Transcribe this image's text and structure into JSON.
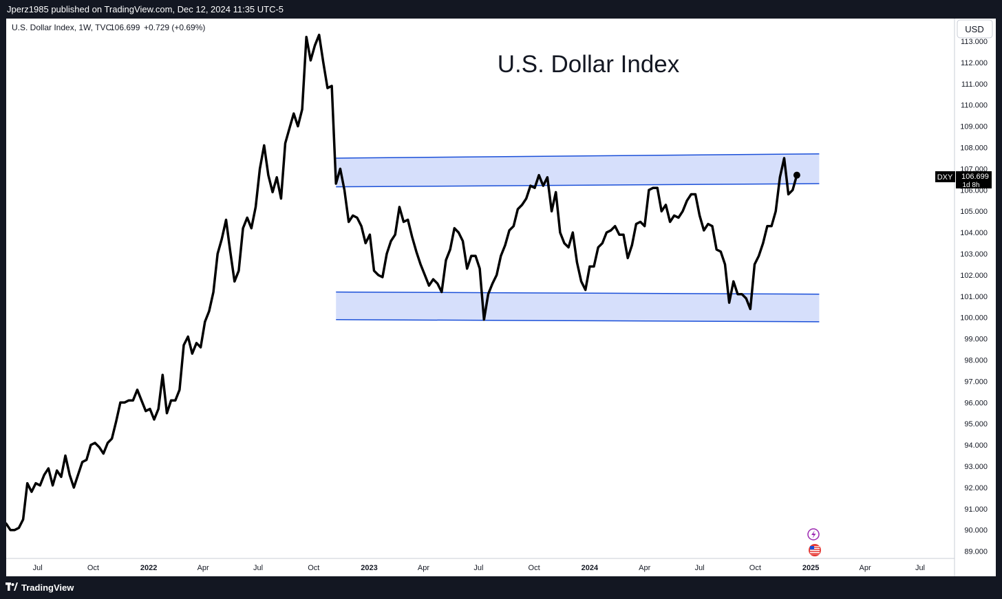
{
  "header": {
    "publish_text": "Jperz1985 published on TradingView.com, Dec 12, 2024 11:35 UTC-5"
  },
  "legend": {
    "symbol_text": "U.S. Dollar Index, 1W, TVC",
    "price": "106.699",
    "change": "+0.729 (+0.69%)"
  },
  "scale": {
    "currency": "USD"
  },
  "price_tag": {
    "ticker": "DXY",
    "price": "106.699",
    "countdown": "1d 8h"
  },
  "footer": {
    "brand": "TradingView"
  },
  "colors": {
    "line": "#000000",
    "zone_fill": "#d1dcfb",
    "zone_border": "#1a4fd8",
    "background": "#ffffff",
    "frame": "#131722",
    "event_purple": "#9c27b0",
    "event_red": "#e53935"
  },
  "icons": {
    "event_1": "lightning-icon",
    "event_2": "us-flag-icon",
    "brand": "tradingview-logo-icon"
  },
  "chart_data": {
    "type": "line",
    "title": "U.S. Dollar Index",
    "ylim": [
      89,
      113.5
    ],
    "y_ticks": [
      "89.000",
      "90.000",
      "91.000",
      "92.000",
      "93.000",
      "94.000",
      "95.000",
      "96.000",
      "97.000",
      "98.000",
      "99.000",
      "100.000",
      "101.000",
      "102.000",
      "103.000",
      "104.000",
      "105.000",
      "106.000",
      "107.000",
      "108.000",
      "109.000",
      "110.000",
      "111.000",
      "112.000",
      "113.000"
    ],
    "x_ticks": [
      "Jul",
      "Oct",
      "2022",
      "Apr",
      "Jul",
      "Oct",
      "2023",
      "Apr",
      "Jul",
      "Oct",
      "2024",
      "Apr",
      "Jul",
      "Oct",
      "2025",
      "Apr",
      "Jul"
    ],
    "x_tick_dates": [
      "2021-07-01",
      "2021-10-01",
      "2022-01-01",
      "2022-04-01",
      "2022-07-01",
      "2022-10-01",
      "2023-01-01",
      "2023-04-01",
      "2023-07-01",
      "2023-10-01",
      "2024-01-01",
      "2024-04-01",
      "2024-07-01",
      "2024-10-01",
      "2025-01-01",
      "2025-04-01",
      "2025-07-01"
    ],
    "x_range": [
      "2021-05-10",
      "2025-08-27"
    ],
    "grid": false,
    "series": [
      {
        "values": [
          [
            "2021-05-10",
            90.3
          ],
          [
            "2021-05-17",
            90.0
          ],
          [
            "2021-05-24",
            90.0
          ],
          [
            "2021-05-31",
            90.1
          ],
          [
            "2021-06-07",
            90.5
          ],
          [
            "2021-06-14",
            92.2
          ],
          [
            "2021-06-21",
            91.8
          ],
          [
            "2021-06-28",
            92.2
          ],
          [
            "2021-07-05",
            92.1
          ],
          [
            "2021-07-12",
            92.6
          ],
          [
            "2021-07-19",
            92.9
          ],
          [
            "2021-07-26",
            92.1
          ],
          [
            "2021-08-02",
            92.8
          ],
          [
            "2021-08-09",
            92.5
          ],
          [
            "2021-08-16",
            93.5
          ],
          [
            "2021-08-23",
            92.6
          ],
          [
            "2021-08-30",
            92.0
          ],
          [
            "2021-09-06",
            92.6
          ],
          [
            "2021-09-13",
            93.2
          ],
          [
            "2021-09-20",
            93.3
          ],
          [
            "2021-09-27",
            94.0
          ],
          [
            "2021-10-04",
            94.1
          ],
          [
            "2021-10-11",
            93.9
          ],
          [
            "2021-10-18",
            93.6
          ],
          [
            "2021-10-25",
            94.1
          ],
          [
            "2021-11-01",
            94.3
          ],
          [
            "2021-11-08",
            95.1
          ],
          [
            "2021-11-15",
            96.0
          ],
          [
            "2021-11-22",
            96.0
          ],
          [
            "2021-11-29",
            96.1
          ],
          [
            "2021-12-06",
            96.1
          ],
          [
            "2021-12-13",
            96.6
          ],
          [
            "2021-12-20",
            96.1
          ],
          [
            "2021-12-27",
            95.6
          ],
          [
            "2022-01-03",
            95.7
          ],
          [
            "2022-01-10",
            95.2
          ],
          [
            "2022-01-17",
            95.7
          ],
          [
            "2022-01-24",
            97.3
          ],
          [
            "2022-01-31",
            95.5
          ],
          [
            "2022-02-07",
            96.1
          ],
          [
            "2022-02-14",
            96.1
          ],
          [
            "2022-02-21",
            96.6
          ],
          [
            "2022-02-28",
            98.7
          ],
          [
            "2022-03-07",
            99.1
          ],
          [
            "2022-03-14",
            98.3
          ],
          [
            "2022-03-21",
            98.8
          ],
          [
            "2022-03-28",
            98.6
          ],
          [
            "2022-04-04",
            99.8
          ],
          [
            "2022-04-11",
            100.3
          ],
          [
            "2022-04-18",
            101.2
          ],
          [
            "2022-04-25",
            103.0
          ],
          [
            "2022-05-02",
            103.7
          ],
          [
            "2022-05-09",
            104.6
          ],
          [
            "2022-05-16",
            103.1
          ],
          [
            "2022-05-23",
            101.7
          ],
          [
            "2022-05-30",
            102.2
          ],
          [
            "2022-06-06",
            104.2
          ],
          [
            "2022-06-13",
            104.7
          ],
          [
            "2022-06-20",
            104.2
          ],
          [
            "2022-06-27",
            105.2
          ],
          [
            "2022-07-04",
            107.0
          ],
          [
            "2022-07-11",
            108.1
          ],
          [
            "2022-07-18",
            106.7
          ],
          [
            "2022-07-25",
            105.9
          ],
          [
            "2022-08-01",
            106.6
          ],
          [
            "2022-08-08",
            105.6
          ],
          [
            "2022-08-15",
            108.2
          ],
          [
            "2022-08-22",
            108.9
          ],
          [
            "2022-08-29",
            109.6
          ],
          [
            "2022-09-05",
            109.0
          ],
          [
            "2022-09-12",
            109.8
          ],
          [
            "2022-09-19",
            113.2
          ],
          [
            "2022-09-26",
            112.1
          ],
          [
            "2022-10-03",
            112.8
          ],
          [
            "2022-10-10",
            113.3
          ],
          [
            "2022-10-17",
            112.0
          ],
          [
            "2022-10-24",
            110.8
          ],
          [
            "2022-10-31",
            110.9
          ],
          [
            "2022-11-07",
            106.3
          ],
          [
            "2022-11-14",
            107.0
          ],
          [
            "2022-11-21",
            106.0
          ],
          [
            "2022-11-28",
            104.5
          ],
          [
            "2022-12-05",
            104.8
          ],
          [
            "2022-12-12",
            104.7
          ],
          [
            "2022-12-19",
            104.3
          ],
          [
            "2022-12-26",
            103.5
          ],
          [
            "2023-01-02",
            103.9
          ],
          [
            "2023-01-09",
            102.2
          ],
          [
            "2023-01-16",
            102.0
          ],
          [
            "2023-01-23",
            101.9
          ],
          [
            "2023-01-30",
            103.0
          ],
          [
            "2023-02-06",
            103.6
          ],
          [
            "2023-02-13",
            103.9
          ],
          [
            "2023-02-20",
            105.2
          ],
          [
            "2023-02-27",
            104.5
          ],
          [
            "2023-03-06",
            104.6
          ],
          [
            "2023-03-13",
            103.8
          ],
          [
            "2023-03-20",
            103.1
          ],
          [
            "2023-03-27",
            102.5
          ],
          [
            "2023-04-03",
            102.0
          ],
          [
            "2023-04-10",
            101.5
          ],
          [
            "2023-04-17",
            101.8
          ],
          [
            "2023-04-24",
            101.6
          ],
          [
            "2023-05-01",
            101.2
          ],
          [
            "2023-05-08",
            102.7
          ],
          [
            "2023-05-15",
            103.2
          ],
          [
            "2023-05-22",
            104.2
          ],
          [
            "2023-05-29",
            104.0
          ],
          [
            "2023-06-05",
            103.6
          ],
          [
            "2023-06-12",
            102.3
          ],
          [
            "2023-06-19",
            102.9
          ],
          [
            "2023-06-26",
            102.9
          ],
          [
            "2023-07-03",
            102.3
          ],
          [
            "2023-07-10",
            99.9
          ],
          [
            "2023-07-17",
            101.1
          ],
          [
            "2023-07-24",
            101.6
          ],
          [
            "2023-07-31",
            102.0
          ],
          [
            "2023-08-07",
            102.9
          ],
          [
            "2023-08-14",
            103.4
          ],
          [
            "2023-08-21",
            104.1
          ],
          [
            "2023-08-28",
            104.3
          ],
          [
            "2023-09-04",
            105.1
          ],
          [
            "2023-09-11",
            105.3
          ],
          [
            "2023-09-18",
            105.6
          ],
          [
            "2023-09-25",
            106.2
          ],
          [
            "2023-10-02",
            106.1
          ],
          [
            "2023-10-09",
            106.7
          ],
          [
            "2023-10-16",
            106.2
          ],
          [
            "2023-10-23",
            106.6
          ],
          [
            "2023-10-30",
            105.0
          ],
          [
            "2023-11-06",
            105.9
          ],
          [
            "2023-11-13",
            104.0
          ],
          [
            "2023-11-20",
            103.5
          ],
          [
            "2023-11-27",
            103.3
          ],
          [
            "2023-12-04",
            104.0
          ],
          [
            "2023-12-11",
            102.6
          ],
          [
            "2023-12-18",
            101.7
          ],
          [
            "2023-12-25",
            101.3
          ],
          [
            "2024-01-01",
            102.4
          ],
          [
            "2024-01-08",
            102.4
          ],
          [
            "2024-01-15",
            103.3
          ],
          [
            "2024-01-22",
            103.5
          ],
          [
            "2024-01-29",
            104.0
          ],
          [
            "2024-02-05",
            104.1
          ],
          [
            "2024-02-12",
            104.3
          ],
          [
            "2024-02-19",
            103.9
          ],
          [
            "2024-02-26",
            103.9
          ],
          [
            "2024-03-04",
            102.8
          ],
          [
            "2024-03-11",
            103.4
          ],
          [
            "2024-03-18",
            104.4
          ],
          [
            "2024-03-25",
            104.5
          ],
          [
            "2024-04-01",
            104.3
          ],
          [
            "2024-04-08",
            106.0
          ],
          [
            "2024-04-15",
            106.1
          ],
          [
            "2024-04-22",
            106.1
          ],
          [
            "2024-04-29",
            105.0
          ],
          [
            "2024-05-06",
            105.3
          ],
          [
            "2024-05-13",
            104.5
          ],
          [
            "2024-05-20",
            104.8
          ],
          [
            "2024-05-27",
            104.7
          ],
          [
            "2024-06-03",
            105.0
          ],
          [
            "2024-06-10",
            105.5
          ],
          [
            "2024-06-17",
            105.8
          ],
          [
            "2024-06-24",
            105.8
          ],
          [
            "2024-07-01",
            104.8
          ],
          [
            "2024-07-08",
            104.1
          ],
          [
            "2024-07-15",
            104.4
          ],
          [
            "2024-07-22",
            104.3
          ],
          [
            "2024-07-29",
            103.2
          ],
          [
            "2024-08-05",
            103.1
          ],
          [
            "2024-08-12",
            102.5
          ],
          [
            "2024-08-19",
            100.7
          ],
          [
            "2024-08-26",
            101.7
          ],
          [
            "2024-09-02",
            101.1
          ],
          [
            "2024-09-09",
            101.1
          ],
          [
            "2024-09-16",
            100.9
          ],
          [
            "2024-09-23",
            100.4
          ],
          [
            "2024-09-30",
            102.5
          ],
          [
            "2024-10-07",
            102.9
          ],
          [
            "2024-10-14",
            103.5
          ],
          [
            "2024-10-21",
            104.3
          ],
          [
            "2024-10-28",
            104.3
          ],
          [
            "2024-11-04",
            105.0
          ],
          [
            "2024-11-11",
            106.6
          ],
          [
            "2024-11-18",
            107.5
          ],
          [
            "2024-11-25",
            105.8
          ],
          [
            "2024-12-02",
            106.0
          ],
          [
            "2024-12-09",
            106.7
          ]
        ]
      }
    ],
    "last_value": 106.699,
    "zones": [
      {
        "x_start": "2022-11-07",
        "x_end": "2025-01-15",
        "top_start": 107.5,
        "top_end": 107.7,
        "bottom_start": 106.15,
        "bottom_end": 106.3
      },
      {
        "x_start": "2022-11-07",
        "x_end": "2025-01-15",
        "top_start": 101.2,
        "top_end": 101.1,
        "bottom_start": 99.9,
        "bottom_end": 99.8
      }
    ]
  }
}
